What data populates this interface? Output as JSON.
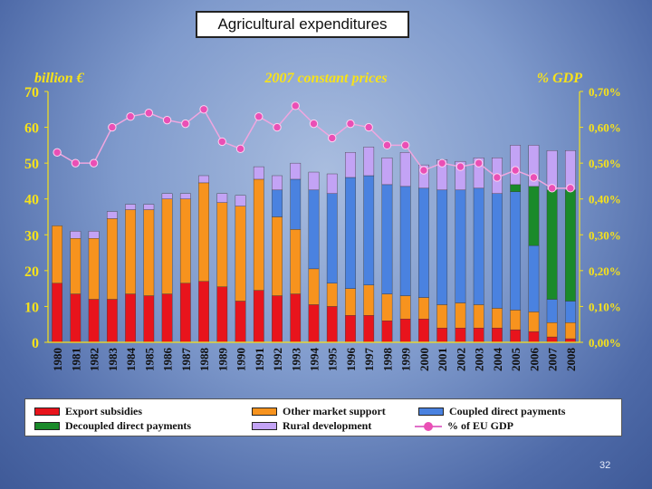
{
  "slide": {
    "title": "Agricultural expenditures",
    "page_number": "32"
  },
  "chart_data": {
    "type": "bar",
    "stacked": true,
    "left_axis_label": "billion €",
    "center_label": "2007 constant prices",
    "right_axis_label": "% GDP",
    "ylim": [
      0,
      70
    ],
    "y2lim": [
      0.0,
      0.7
    ],
    "yticks": [
      "0",
      "10",
      "20",
      "30",
      "40",
      "50",
      "60",
      "70"
    ],
    "y2ticks": [
      "0,00%",
      "0,10%",
      "0,20%",
      "0,30%",
      "0,40%",
      "0,50%",
      "0,60%",
      "0,70%"
    ],
    "categories": [
      "1980",
      "1981",
      "1982",
      "1983",
      "1984",
      "1985",
      "1986",
      "1987",
      "1988",
      "1989",
      "1990",
      "1991",
      "1992",
      "1993",
      "1994",
      "1995",
      "1996",
      "1997",
      "1998",
      "1999",
      "2000",
      "2001",
      "2002",
      "2003",
      "2004",
      "2005",
      "2006",
      "2007",
      "2008"
    ],
    "series": [
      {
        "name": "Export subsidies",
        "color": "#e8141c",
        "values": [
          16.5,
          13.5,
          12,
          12,
          13.5,
          13,
          13.5,
          16.5,
          17,
          15.5,
          11.5,
          14.5,
          13,
          13.5,
          10.5,
          10,
          7.5,
          7.5,
          6,
          6.5,
          6.5,
          4,
          4,
          4,
          4,
          3.5,
          3,
          1.5,
          1
        ]
      },
      {
        "name": "Other market support",
        "color": "#f7931e",
        "values": [
          16,
          15.5,
          17,
          22.5,
          23.5,
          24,
          26.5,
          23.5,
          27.5,
          23.5,
          26.5,
          31,
          22,
          18,
          10,
          6.5,
          7.5,
          8.5,
          7.5,
          6.5,
          6,
          6.5,
          7,
          6.5,
          5.5,
          5.5,
          5.5,
          4,
          4.5
        ]
      },
      {
        "name": "Coupled direct payments",
        "color": "#4a82e0",
        "values": [
          0,
          0,
          0,
          0,
          0,
          0,
          0,
          0,
          0,
          0,
          0,
          0,
          7.5,
          14,
          22,
          25,
          31,
          30.5,
          30.5,
          30.5,
          30.5,
          32,
          31.5,
          32.5,
          32,
          33,
          18.5,
          6.5,
          6
        ]
      },
      {
        "name": "Decoupled direct payments",
        "color": "#1a8a2a",
        "values": [
          0,
          0,
          0,
          0,
          0,
          0,
          0,
          0,
          0,
          0,
          0,
          0,
          0,
          0,
          0,
          0,
          0,
          0,
          0,
          0,
          0,
          0,
          0,
          0,
          0,
          2,
          16.5,
          30.5,
          31
        ]
      },
      {
        "name": "Rural development",
        "color": "#c3a3f5",
        "values": [
          0,
          2,
          2,
          2,
          1.5,
          1.5,
          1.5,
          1.5,
          2,
          2.5,
          3,
          3.5,
          4,
          4.5,
          5,
          5.5,
          7,
          8,
          7.5,
          9.5,
          6.5,
          8.5,
          8,
          8.5,
          10,
          11,
          11.5,
          11,
          11
        ]
      },
      {
        "name": "% of EU GDP",
        "type": "line",
        "axis": "right",
        "color": "#ea4fb5",
        "values": [
          0.53,
          0.5,
          0.5,
          0.6,
          0.63,
          0.64,
          0.62,
          0.61,
          0.65,
          0.56,
          0.54,
          0.63,
          0.6,
          0.66,
          0.61,
          0.57,
          0.61,
          0.6,
          0.55,
          0.55,
          0.48,
          0.5,
          0.49,
          0.5,
          0.46,
          0.48,
          0.46,
          0.43,
          0.43
        ]
      }
    ],
    "legend_position": "bottom"
  }
}
